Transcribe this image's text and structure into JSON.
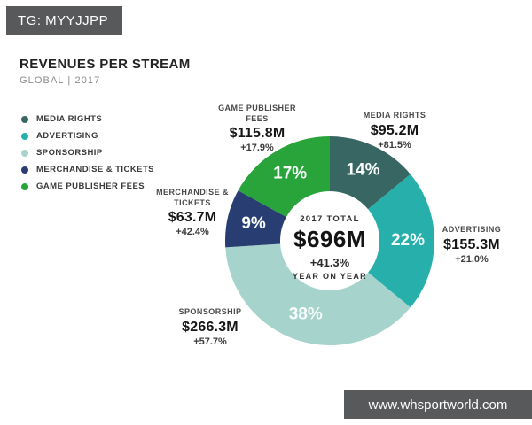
{
  "page": {
    "top_badge": "TG: MYYJJPP",
    "bottom_badge": "www.whsportworld.com",
    "badge_bg": "#58595a"
  },
  "header": {
    "title": "REVENUES PER STREAM",
    "subtitle": "GLOBAL | 2017"
  },
  "chart_data": {
    "type": "pie",
    "subtype": "donut",
    "title": "REVENUES PER STREAM",
    "subtitle": "GLOBAL | 2017",
    "direction": "clockwise",
    "start_angle_deg": 0,
    "legend_position": "left",
    "center_label": {
      "caption": "2017 TOTAL",
      "total": "$696M",
      "growth": "+41.3%",
      "caption2": "YEAR ON YEAR"
    },
    "segments": [
      {
        "label": "MEDIA RIGHTS",
        "percent": 14,
        "revenue": "$95.2M",
        "revenue_musd": 95.2,
        "growth": "+81.5%",
        "color": "#386662"
      },
      {
        "label": "ADVERTISING",
        "percent": 22,
        "revenue": "$155.3M",
        "revenue_musd": 155.3,
        "growth": "+21.0%",
        "color": "#27b0ab"
      },
      {
        "label": "SPONSORSHIP",
        "percent": 38,
        "revenue": "$266.3M",
        "revenue_musd": 266.3,
        "growth": "+57.7%",
        "color": "#a6d4cd"
      },
      {
        "label": "MERCHANDISE & TICKETS",
        "percent": 9,
        "revenue": "$63.7M",
        "revenue_musd": 63.7,
        "growth": "+42.4%",
        "color": "#283d72"
      },
      {
        "label": "GAME PUBLISHER FEES",
        "percent": 17,
        "revenue": "$115.8M",
        "revenue_musd": 115.8,
        "growth": "+17.9%",
        "color": "#28a43a"
      }
    ]
  }
}
